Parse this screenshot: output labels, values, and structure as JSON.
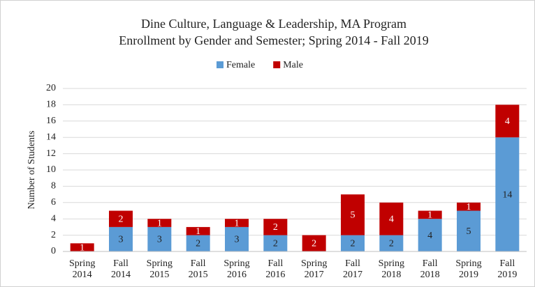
{
  "chart_data": {
    "type": "stacked_bar",
    "title": "Dine Culture, Language  & Leadership, MA Program",
    "subtitle": "Enrollment  by Gender and Semester; Spring  2014 - Fall 2019",
    "y_label": "Number of Students",
    "categories": [
      "Spring 2014",
      "Fall 2014",
      "Spring 2015",
      "Fall 2015",
      "Spring 2016",
      "Fall 2016",
      "Spring 2017",
      "Fall 2017",
      "Spring 2018",
      "Fall 2018",
      "Spring 2019",
      "Fall 2019"
    ],
    "series": [
      {
        "name": "Female",
        "color": "#5b9bd5",
        "values": [
          0,
          3,
          3,
          2,
          3,
          2,
          0,
          2,
          2,
          4,
          5,
          14
        ],
        "value_labels": [
          null,
          "3",
          "3",
          "2",
          "3",
          "2",
          null,
          "2",
          "2",
          "4",
          "5",
          "14"
        ]
      },
      {
        "name": "Male",
        "color": "#c00000",
        "values": [
          1,
          2,
          1,
          1,
          1,
          2,
          2,
          5,
          4,
          1,
          1,
          4
        ]
      }
    ],
    "ylim": [
      0,
      20
    ],
    "yticks": [
      0,
      2,
      4,
      6,
      8,
      10,
      12,
      14,
      16,
      18,
      20
    ],
    "grid": true,
    "legend": "top"
  }
}
